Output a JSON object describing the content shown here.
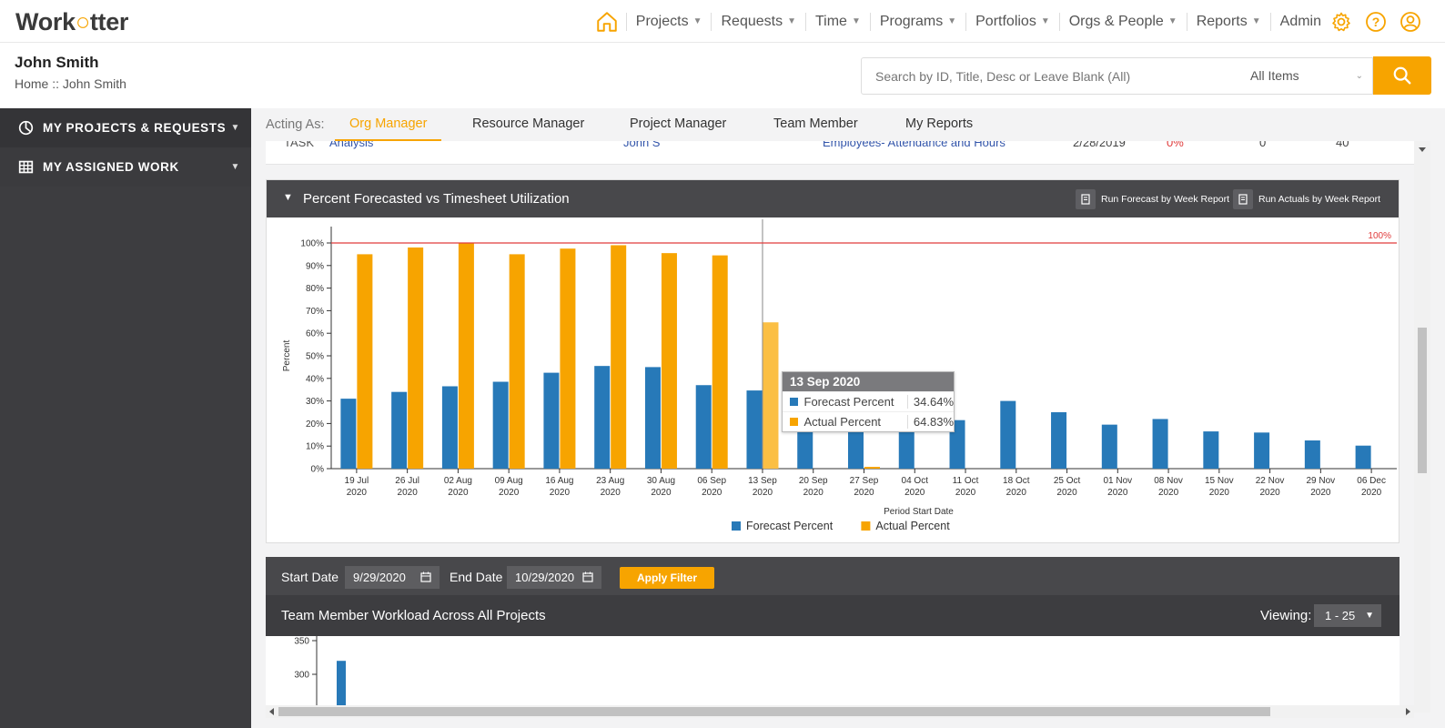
{
  "app": {
    "logo_text_a": "Work",
    "logo_text_b": "tter",
    "brand_color": "#f7a400"
  },
  "nav": {
    "home_icon": "home-icon",
    "items": [
      {
        "label": "Projects"
      },
      {
        "label": "Requests"
      },
      {
        "label": "Time"
      },
      {
        "label": "Programs"
      },
      {
        "label": "Portfolios"
      },
      {
        "label": "Orgs & People"
      },
      {
        "label": "Reports"
      }
    ],
    "admin_label": "Admin"
  },
  "header": {
    "user_name": "John Smith",
    "breadcrumb": "Home :: John Smith",
    "search_placeholder": "Search by ID, Title, Desc or Leave Blank (All)",
    "search_scope": "All Items"
  },
  "sidebar": {
    "items": [
      {
        "label": "MY PROJECTS & REQUESTS",
        "icon": "pie-chart-icon"
      },
      {
        "label": "MY ASSIGNED WORK",
        "icon": "grid-icon"
      }
    ]
  },
  "acting": {
    "label": "Acting As:",
    "tabs": [
      {
        "label": "Org Manager",
        "active": true
      },
      {
        "label": "Resource Manager"
      },
      {
        "label": "Project Manager"
      },
      {
        "label": "Team Member"
      },
      {
        "label": "My Reports"
      }
    ]
  },
  "prev_row": {
    "type": "TASK",
    "name": "Analysis",
    "owner": "John S",
    "project": "Employees- Attendance and Hours",
    "date": "2/28/2019",
    "pct": "0%",
    "a": "0",
    "b": "40"
  },
  "panel1": {
    "title": "Percent Forecasted vs Timesheet Utilization",
    "btn_forecast": "Run Forecast by Week Report",
    "btn_actuals": "Run Actuals by Week Report"
  },
  "chart_data": {
    "type": "bar",
    "ylabel": "Percent",
    "xlabel": "Period Start Date",
    "ylim": [
      0,
      100
    ],
    "yticks": [
      "0%",
      "10%",
      "20%",
      "30%",
      "40%",
      "50%",
      "60%",
      "70%",
      "80%",
      "90%",
      "100%"
    ],
    "reference_line": {
      "value": 100,
      "label": "100%",
      "color": "#e03c3c"
    },
    "categories": [
      [
        "19 Jul",
        "2020"
      ],
      [
        "26 Jul",
        "2020"
      ],
      [
        "02 Aug",
        "2020"
      ],
      [
        "09 Aug",
        "2020"
      ],
      [
        "16 Aug",
        "2020"
      ],
      [
        "23 Aug",
        "2020"
      ],
      [
        "30 Aug",
        "2020"
      ],
      [
        "06 Sep",
        "2020"
      ],
      [
        "13 Sep",
        "2020"
      ],
      [
        "20 Sep",
        "2020"
      ],
      [
        "27 Sep",
        "2020"
      ],
      [
        "04 Oct",
        "2020"
      ],
      [
        "11 Oct",
        "2020"
      ],
      [
        "18 Oct",
        "2020"
      ],
      [
        "25 Oct",
        "2020"
      ],
      [
        "01 Nov",
        "2020"
      ],
      [
        "08 Nov",
        "2020"
      ],
      [
        "15 Nov",
        "2020"
      ],
      [
        "22 Nov",
        "2020"
      ],
      [
        "29 Nov",
        "2020"
      ],
      [
        "06 Dec",
        "2020"
      ]
    ],
    "series": [
      {
        "name": "Forecast Percent",
        "color": "#2779b8",
        "values": [
          31,
          34,
          36.5,
          38.5,
          42.5,
          45.5,
          45,
          37,
          34.64,
          28.5,
          19.5,
          26.5,
          21.5,
          30,
          25,
          19.5,
          22,
          16.5,
          16,
          12.5,
          10.2
        ]
      },
      {
        "name": "Actual Percent",
        "color": "#f7a400",
        "values": [
          95,
          98,
          100,
          95,
          97.5,
          99,
          95.5,
          94.5,
          64.83,
          0,
          0.8,
          0,
          0,
          0,
          0,
          0,
          0,
          0,
          0,
          0,
          0
        ]
      }
    ],
    "legend": "bottom-center",
    "highlight_index": 8,
    "highlight_color": "#fbbf44"
  },
  "tooltip": {
    "title": "13 Sep 2020",
    "rows": [
      {
        "name": "Forecast Percent",
        "value": "34.64%",
        "color": "#2779b8"
      },
      {
        "name": "Actual Percent",
        "value": "64.83%",
        "color": "#f7a400"
      }
    ]
  },
  "filter": {
    "start_label": "Start Date",
    "start_value": "9/29/2020",
    "end_label": "End Date",
    "end_value": "10/29/2020",
    "apply_label": "Apply Filter"
  },
  "workload": {
    "title": "Team Member Workload Across All Projects",
    "viewing_label": "Viewing:",
    "viewing_value": "1 - 25",
    "yticks": [
      "350",
      "300"
    ],
    "first_bar_value": 320,
    "bar_color": "#2779b8"
  }
}
